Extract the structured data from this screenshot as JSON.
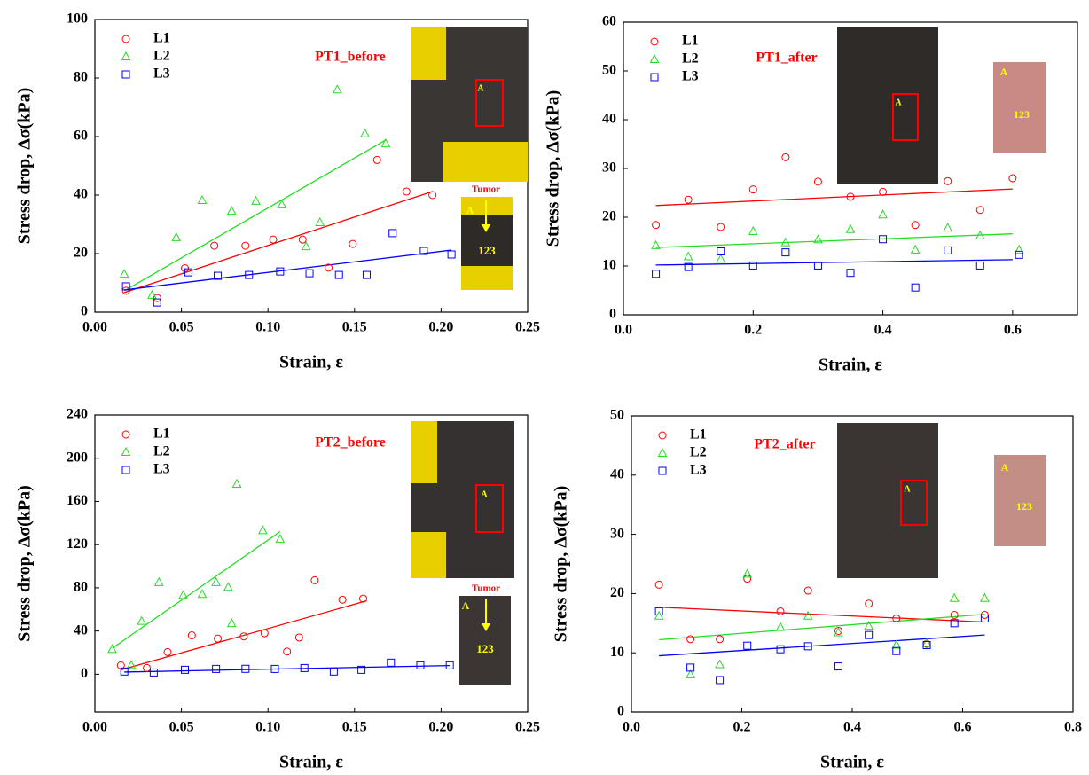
{
  "chart_data": [
    {
      "type": "scatter",
      "title": "PT1_before",
      "xlabel": "Strain, ε",
      "ylabel": "Stress drop, Δσ(kPa)",
      "xlim": [
        0,
        0.25
      ],
      "ylim": [
        0,
        100
      ],
      "xticks": [
        {
          "value": 0,
          "label": "0.00"
        },
        {
          "value": 0.05,
          "label": "0.05"
        },
        {
          "value": 0.1,
          "label": "0.10"
        },
        {
          "value": 0.15,
          "label": "0.15"
        },
        {
          "value": 0.2,
          "label": "0.20"
        },
        {
          "value": 0.25,
          "label": "0.25"
        }
      ],
      "yticks": [
        0,
        20,
        40,
        60,
        80,
        100
      ],
      "series": [
        {
          "name": "L1",
          "color": "#ff0000",
          "marker": "circle",
          "x": [
            0.018,
            0.036,
            0.052,
            0.069,
            0.087,
            0.103,
            0.12,
            0.135,
            0.149,
            0.163,
            0.18,
            0.195
          ],
          "values": [
            7.3,
            4.8,
            15,
            22.7,
            22.7,
            24.8,
            24.8,
            15.2,
            23.3,
            52,
            41.2,
            40
          ]
        },
        {
          "name": "L2",
          "color": "#22dd22",
          "marker": "triangle",
          "x": [
            0.017,
            0.033,
            0.047,
            0.062,
            0.079,
            0.093,
            0.108,
            0.122,
            0.13,
            0.14,
            0.156,
            0.168
          ],
          "values": [
            13,
            5.8,
            25.5,
            38.2,
            34.5,
            37.9,
            36.7,
            22.4,
            30.6,
            76,
            61,
            57.6
          ]
        },
        {
          "name": "L3",
          "color": "#0000ff",
          "marker": "square",
          "x": [
            0.018,
            0.036,
            0.054,
            0.071,
            0.089,
            0.107,
            0.124,
            0.141,
            0.157,
            0.172,
            0.19,
            0.206
          ],
          "values": [
            8.8,
            3.3,
            13.6,
            12.4,
            12.7,
            13.9,
            13.3,
            12.7,
            12.7,
            27,
            20.9,
            19.7
          ]
        }
      ],
      "trend_lines": [
        {
          "color": "#ff0000",
          "x": [
            0.017,
            0.195
          ],
          "values": [
            6.7,
            41.2
          ]
        },
        {
          "color": "#22dd22",
          "x": [
            0.017,
            0.168
          ],
          "values": [
            7.3,
            58.8
          ]
        },
        {
          "color": "#0000ff",
          "x": [
            0.017,
            0.206
          ],
          "values": [
            7.6,
            21.2
          ]
        }
      ],
      "annotations": [
        "A",
        "Tumor",
        "A",
        "123"
      ]
    },
    {
      "type": "scatter",
      "title": "PT1_after",
      "xlabel": "Strain, ε",
      "ylabel": "Stress drop, Δσ(kPa)",
      "xlim": [
        0,
        0.7
      ],
      "ylim": [
        0,
        60
      ],
      "xticks": [
        {
          "value": 0,
          "label": "0.0"
        },
        {
          "value": 0.2,
          "label": "0.2"
        },
        {
          "value": 0.4,
          "label": "0.4"
        },
        {
          "value": 0.6,
          "label": "0.6"
        }
      ],
      "yticks": [
        0,
        10,
        20,
        30,
        40,
        50,
        60
      ],
      "series": [
        {
          "name": "L1",
          "color": "#ff0000",
          "marker": "circle",
          "x": [
            0.05,
            0.1,
            0.15,
            0.2,
            0.25,
            0.3,
            0.35,
            0.4,
            0.45,
            0.5,
            0.55,
            0.6
          ],
          "values": [
            18.4,
            23.6,
            18,
            25.7,
            32.3,
            27.3,
            24.2,
            25.2,
            18.4,
            27.4,
            21.5,
            28
          ]
        },
        {
          "name": "L2",
          "color": "#22dd22",
          "marker": "triangle",
          "x": [
            0.05,
            0.1,
            0.15,
            0.2,
            0.25,
            0.3,
            0.35,
            0.4,
            0.45,
            0.5,
            0.55,
            0.61
          ],
          "values": [
            14.2,
            11.9,
            11.4,
            17.1,
            14.8,
            15.4,
            17.5,
            20.5,
            13.3,
            17.8,
            16.2,
            13.3
          ]
        },
        {
          "name": "L3",
          "color": "#0000ff",
          "marker": "square",
          "x": [
            0.05,
            0.1,
            0.15,
            0.2,
            0.25,
            0.3,
            0.35,
            0.4,
            0.45,
            0.5,
            0.55,
            0.61
          ],
          "values": [
            8.4,
            9.8,
            13,
            10.1,
            12.8,
            10.1,
            8.6,
            15.5,
            5.6,
            13.2,
            10.1,
            12.3
          ]
        }
      ],
      "trend_lines": [
        {
          "color": "#ff0000",
          "x": [
            0.05,
            0.6
          ],
          "values": [
            22.4,
            25.8
          ]
        },
        {
          "color": "#22dd22",
          "x": [
            0.05,
            0.6
          ],
          "values": [
            13.8,
            16.6
          ]
        },
        {
          "color": "#0000ff",
          "x": [
            0.05,
            0.6
          ],
          "values": [
            10.2,
            11.3
          ]
        }
      ],
      "annotations": [
        "A",
        "A",
        "123"
      ]
    },
    {
      "type": "scatter",
      "title": "PT2_before",
      "xlabel": "Strain, ε",
      "ylabel": "Stress drop, Δσ(kPa)",
      "xlim": [
        0,
        0.25
      ],
      "ylim": [
        -35,
        240
      ],
      "xticks": [
        {
          "value": 0,
          "label": "0.00"
        },
        {
          "value": 0.05,
          "label": "0.05"
        },
        {
          "value": 0.1,
          "label": "0.10"
        },
        {
          "value": 0.15,
          "label": "0.15"
        },
        {
          "value": 0.2,
          "label": "0.20"
        },
        {
          "value": 0.25,
          "label": "0.25"
        }
      ],
      "yticks": [
        0,
        40,
        80,
        120,
        160,
        200,
        240
      ],
      "series": [
        {
          "name": "L1",
          "color": "#ff0000",
          "marker": "circle",
          "x": [
            0.015,
            0.03,
            0.042,
            0.056,
            0.071,
            0.086,
            0.098,
            0.111,
            0.118,
            0.127,
            0.143,
            0.155
          ],
          "values": [
            8.2,
            5.8,
            20.5,
            36,
            33,
            35,
            38,
            21,
            34,
            87,
            69,
            70
          ]
        },
        {
          "name": "L2",
          "color": "#22dd22",
          "marker": "triangle",
          "x": [
            0.01,
            0.021,
            0.027,
            0.037,
            0.051,
            0.062,
            0.07,
            0.077,
            0.079,
            0.082,
            0.097,
            0.107
          ],
          "values": [
            23,
            8.2,
            49,
            85,
            73,
            74,
            85,
            80.5,
            47,
            176,
            133,
            125
          ]
        },
        {
          "name": "L3",
          "color": "#0000ff",
          "marker": "square",
          "x": [
            0.017,
            0.034,
            0.052,
            0.07,
            0.087,
            0.104,
            0.121,
            0.138,
            0.154,
            0.171,
            0.188,
            0.205
          ],
          "values": [
            2.5,
            1.6,
            4.1,
            4.9,
            5,
            4.9,
            5.7,
            2.5,
            4.1,
            10.7,
            8.2,
            8.2
          ]
        }
      ],
      "trend_lines": [
        {
          "color": "#ff0000",
          "x": [
            0.015,
            0.157
          ],
          "values": [
            4,
            68
          ]
        },
        {
          "color": "#22dd22",
          "x": [
            0.01,
            0.107
          ],
          "values": [
            24,
            132
          ]
        },
        {
          "color": "#0000ff",
          "x": [
            0.017,
            0.205
          ],
          "values": [
            2,
            8
          ]
        }
      ],
      "annotations": [
        "A",
        "Tumor",
        "A",
        "123"
      ]
    },
    {
      "type": "scatter",
      "title": "PT2_after",
      "xlabel": "Strain, ε",
      "ylabel": "Stress drop, Δσ(kPa)",
      "xlim": [
        0,
        0.8
      ],
      "ylim": [
        0,
        50
      ],
      "xticks": [
        {
          "value": 0,
          "label": "0.0"
        },
        {
          "value": 0.2,
          "label": "0.2"
        },
        {
          "value": 0.4,
          "label": "0.4"
        },
        {
          "value": 0.6,
          "label": "0.6"
        },
        {
          "value": 0.8,
          "label": "0.8"
        }
      ],
      "yticks": [
        0,
        10,
        20,
        30,
        40,
        50
      ],
      "series": [
        {
          "name": "L1",
          "color": "#ff0000",
          "marker": "circle",
          "x": [
            0.05,
            0.107,
            0.16,
            0.21,
            0.27,
            0.32,
            0.375,
            0.43,
            0.48,
            0.535,
            0.585,
            0.64
          ],
          "values": [
            21.5,
            12.3,
            12.3,
            22.5,
            17,
            20.5,
            13.7,
            18.3,
            15.8,
            11.5,
            16.4,
            16.4
          ]
        },
        {
          "name": "L2",
          "color": "#22dd22",
          "marker": "triangle",
          "x": [
            0.05,
            0.107,
            0.16,
            0.21,
            0.27,
            0.32,
            0.375,
            0.43,
            0.48,
            0.535,
            0.585,
            0.64
          ],
          "values": [
            16.2,
            6.3,
            8,
            23.3,
            14.3,
            16.2,
            13.4,
            14.5,
            11.3,
            11.6,
            19.2,
            19.2
          ]
        },
        {
          "name": "L3",
          "color": "#0000ff",
          "marker": "square",
          "x": [
            0.05,
            0.107,
            0.16,
            0.21,
            0.27,
            0.32,
            0.375,
            0.43,
            0.48,
            0.535,
            0.585,
            0.64
          ],
          "values": [
            17,
            7.5,
            5.4,
            11.2,
            10.6,
            11.1,
            7.7,
            13,
            10.3,
            11.3,
            15,
            15.8
          ]
        }
      ],
      "trend_lines": [
        {
          "color": "#ff0000",
          "x": [
            0.05,
            0.64
          ],
          "values": [
            17.7,
            15.2
          ]
        },
        {
          "color": "#22dd22",
          "x": [
            0.05,
            0.64
          ],
          "values": [
            12.2,
            16.5
          ]
        },
        {
          "color": "#0000ff",
          "x": [
            0.05,
            0.64
          ],
          "values": [
            9.5,
            13
          ]
        }
      ],
      "annotations": [
        "A",
        "A",
        "123"
      ]
    }
  ]
}
